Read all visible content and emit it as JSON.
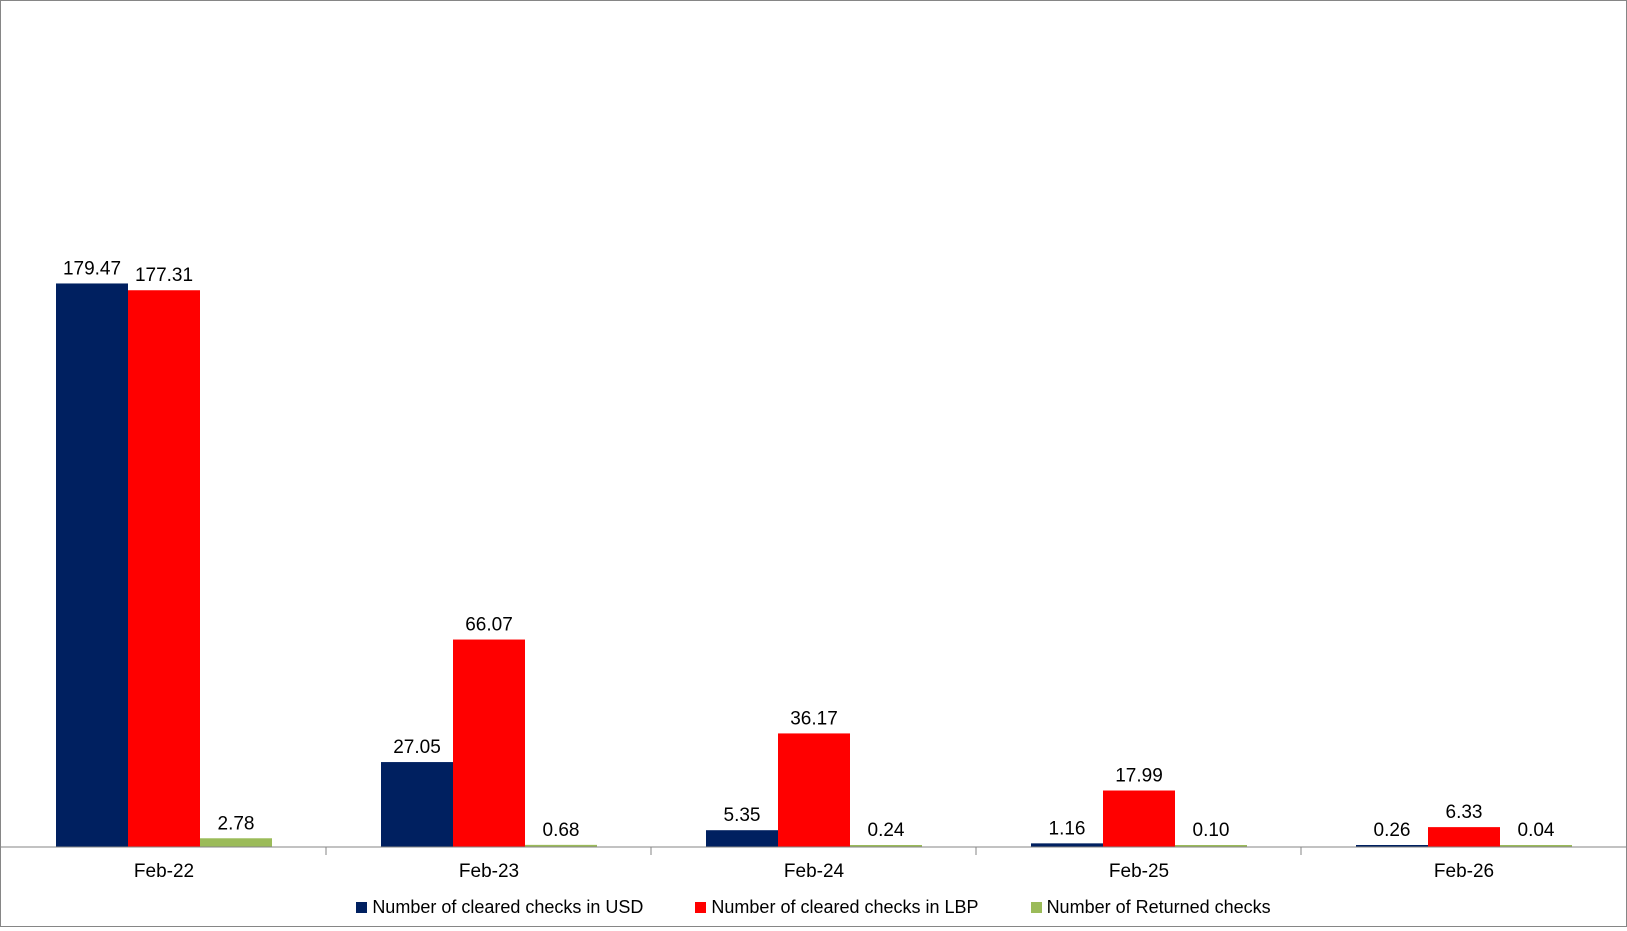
{
  "chart_data": {
    "type": "bar",
    "categories": [
      "Feb-22",
      "Feb-23",
      "Feb-24",
      "Feb-25",
      "Feb-26"
    ],
    "series": [
      {
        "name": "Number of cleared checks in USD",
        "color": "#002060",
        "values": [
          179.47,
          27.05,
          5.35,
          1.16,
          0.26
        ],
        "labels": [
          "179.47",
          "27.05",
          "5.35",
          "1.16",
          "0.26"
        ]
      },
      {
        "name": "Number of cleared checks in LBP",
        "color": "#ff0000",
        "values": [
          177.31,
          66.07,
          36.17,
          17.99,
          6.33
        ],
        "labels": [
          "177.31",
          "66.07",
          "36.17",
          "17.99",
          "6.33"
        ]
      },
      {
        "name": "Number of Returned checks",
        "color": "#9bbb59",
        "values": [
          2.78,
          0.68,
          0.24,
          0.1,
          0.04
        ],
        "labels": [
          "2.78",
          "0.68",
          "0.24",
          "0.10",
          "0.04"
        ]
      }
    ],
    "title": "",
    "xlabel": "",
    "ylabel": "",
    "ylim": [
      0,
      250
    ],
    "grid": false,
    "legend_position": "bottom"
  }
}
